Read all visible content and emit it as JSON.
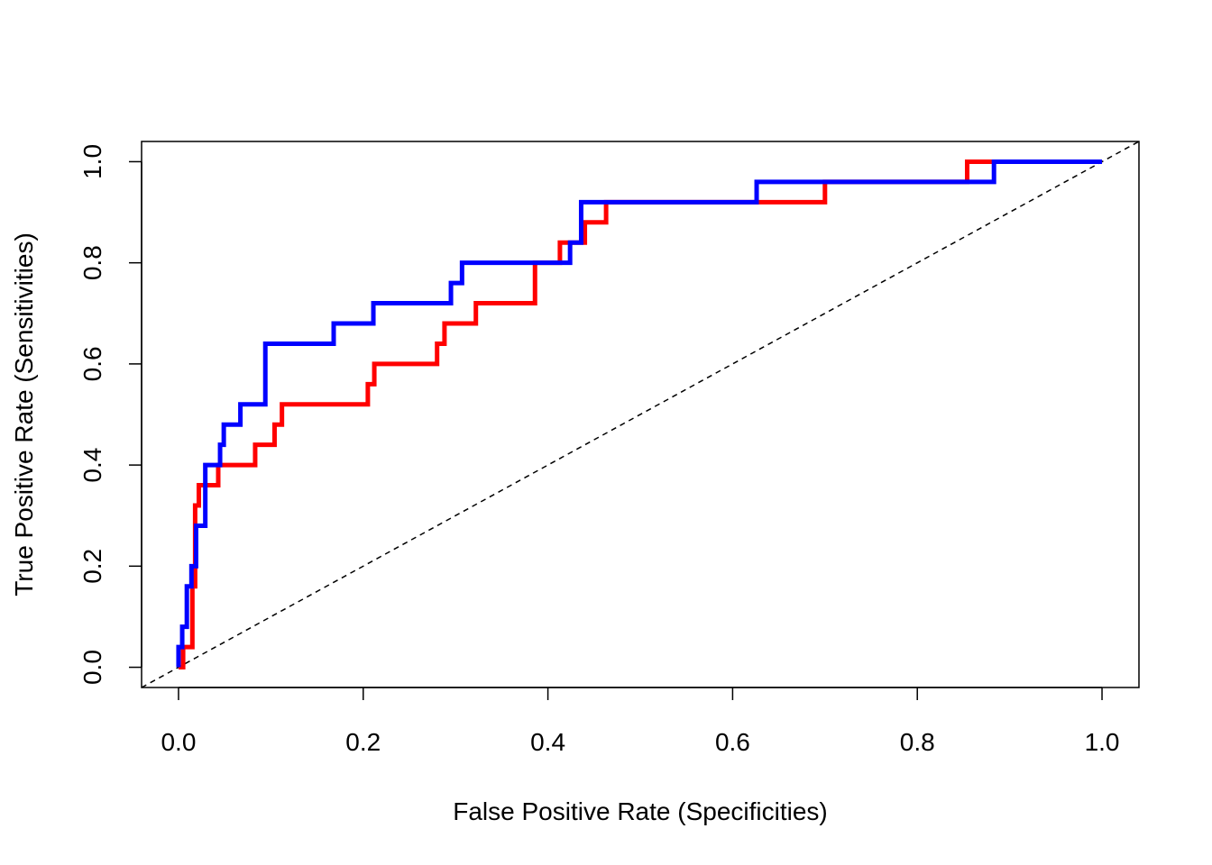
{
  "chart_data": {
    "type": "line",
    "title": "",
    "xlabel": "False Positive Rate (Specificities)",
    "ylabel": "True Positive Rate (Sensitivities)",
    "xlim": [
      -0.04,
      1.04
    ],
    "ylim": [
      -0.04,
      1.04
    ],
    "x_ticks": [
      0.0,
      0.2,
      0.4,
      0.6,
      0.8,
      1.0
    ],
    "y_ticks": [
      0.0,
      0.2,
      0.4,
      0.6,
      0.8,
      1.0
    ],
    "x_tick_labels": [
      "0.0",
      "0.2",
      "0.4",
      "0.6",
      "0.8",
      "1.0"
    ],
    "y_tick_labels": [
      "0.0",
      "0.2",
      "0.4",
      "0.6",
      "0.8",
      "1.0"
    ],
    "grid": false,
    "legend": "none",
    "reference_line": {
      "x": [
        0,
        1
      ],
      "y": [
        0,
        1
      ],
      "style": "dashed",
      "color": "#000000"
    },
    "series": [
      {
        "color": "#ff0000",
        "x": [
          0.0,
          0.005,
          0.005,
          0.015,
          0.015,
          0.018,
          0.018,
          0.022,
          0.022,
          0.043,
          0.043,
          0.083,
          0.083,
          0.104,
          0.104,
          0.112,
          0.112,
          0.205,
          0.205,
          0.212,
          0.212,
          0.28,
          0.28,
          0.288,
          0.288,
          0.322,
          0.322,
          0.386,
          0.386,
          0.413,
          0.413,
          0.44,
          0.44,
          0.463,
          0.463,
          0.7,
          0.7,
          0.854,
          0.854,
          1.0
        ],
        "y": [
          0.0,
          0.0,
          0.04,
          0.04,
          0.16,
          0.16,
          0.32,
          0.32,
          0.36,
          0.36,
          0.4,
          0.4,
          0.44,
          0.44,
          0.48,
          0.48,
          0.52,
          0.52,
          0.56,
          0.56,
          0.6,
          0.6,
          0.64,
          0.64,
          0.68,
          0.68,
          0.72,
          0.72,
          0.8,
          0.8,
          0.84,
          0.84,
          0.88,
          0.88,
          0.92,
          0.92,
          0.96,
          0.96,
          1.0,
          1.0
        ]
      },
      {
        "color": "#0000ff",
        "x": [
          0.0,
          0.0,
          0.004,
          0.004,
          0.009,
          0.009,
          0.014,
          0.014,
          0.019,
          0.019,
          0.029,
          0.029,
          0.045,
          0.045,
          0.049,
          0.049,
          0.067,
          0.067,
          0.094,
          0.094,
          0.168,
          0.168,
          0.211,
          0.211,
          0.295,
          0.295,
          0.307,
          0.307,
          0.424,
          0.424,
          0.436,
          0.436,
          0.626,
          0.626,
          0.883,
          0.883,
          1.0
        ],
        "y": [
          0.0,
          0.04,
          0.04,
          0.08,
          0.08,
          0.16,
          0.16,
          0.2,
          0.2,
          0.28,
          0.28,
          0.4,
          0.4,
          0.44,
          0.44,
          0.48,
          0.48,
          0.52,
          0.52,
          0.64,
          0.64,
          0.68,
          0.68,
          0.72,
          0.72,
          0.76,
          0.76,
          0.8,
          0.8,
          0.84,
          0.84,
          0.92,
          0.92,
          0.96,
          0.96,
          1.0,
          1.0
        ]
      }
    ]
  }
}
